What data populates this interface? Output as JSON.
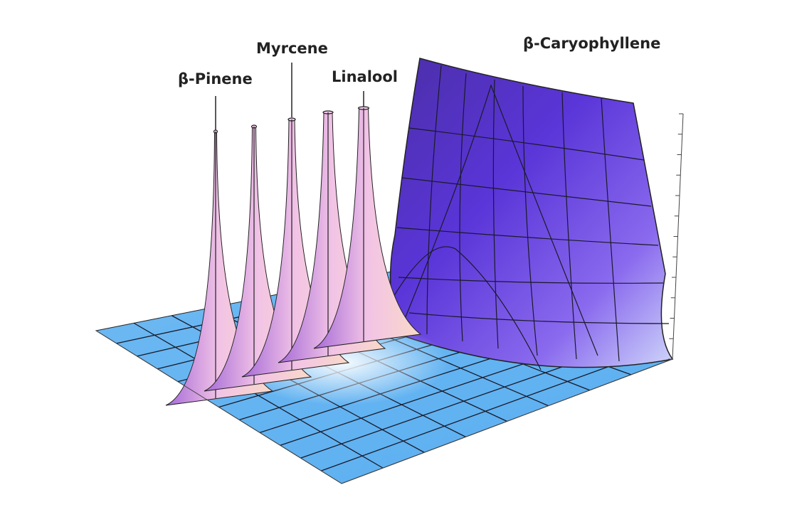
{
  "labels": {
    "beta_pinene": "β-Pinene",
    "myrcene": "Myrcene",
    "linalool": "Linalool",
    "beta_caryophyllene": "β-Caryophyllene"
  },
  "colors": {
    "floor": "#6cb8f2",
    "peak_light": "#f7d6ec",
    "peak_mid": "#c98be0",
    "wall_dark": "#4a2bb8",
    "wall_light": "#8a5ee0",
    "grid": "#1a1a2a"
  }
}
